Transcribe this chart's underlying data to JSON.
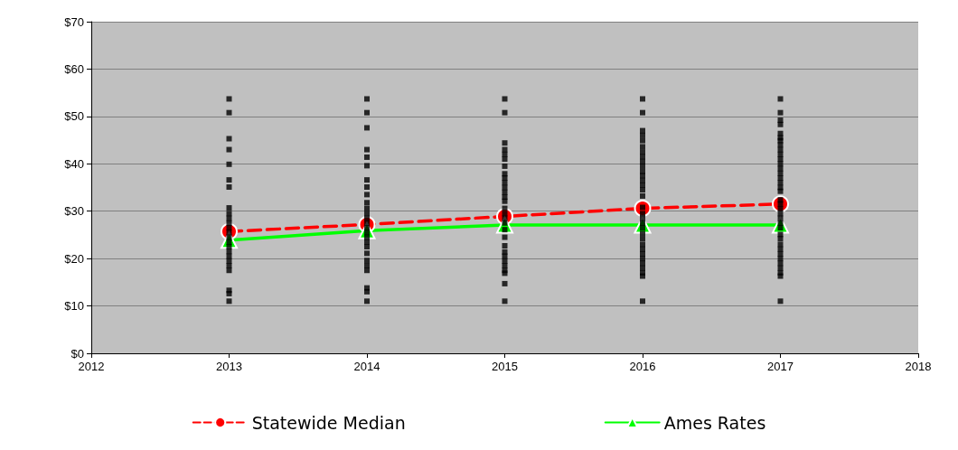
{
  "chart_data": {
    "type": "line",
    "xlim": [
      2012,
      2018
    ],
    "xticks": [
      2012,
      2013,
      2014,
      2015,
      2016,
      2017,
      2018
    ],
    "ylim": [
      0,
      70
    ],
    "yticks": [
      {
        "value": 0,
        "label": "$0"
      },
      {
        "value": 10,
        "label": "$10"
      },
      {
        "value": 20,
        "label": "$20"
      },
      {
        "value": 30,
        "label": "$30"
      },
      {
        "value": 40,
        "label": "$40"
      },
      {
        "value": 50,
        "label": "$50"
      },
      {
        "value": 60,
        "label": "$60"
      },
      {
        "value": 70,
        "label": "$70"
      }
    ],
    "grid": "y",
    "legend": "bottom",
    "series": [
      {
        "type": "scatter",
        "color": "#000000",
        "marker": "square",
        "x": [
          2013,
          2013,
          2013,
          2013,
          2013,
          2013,
          2013,
          2013,
          2013,
          2013,
          2013,
          2013,
          2013,
          2013,
          2013,
          2013,
          2013,
          2013,
          2013,
          2013,
          2013,
          2013,
          2013,
          2013,
          2014,
          2014,
          2014,
          2014,
          2014,
          2014,
          2014,
          2014,
          2014,
          2014,
          2014,
          2014,
          2014,
          2014,
          2014,
          2014,
          2014,
          2014,
          2014,
          2014,
          2014,
          2014,
          2014,
          2014,
          2014,
          2014,
          2015,
          2015,
          2015,
          2015,
          2015,
          2015,
          2015,
          2015,
          2015,
          2015,
          2015,
          2015,
          2015,
          2015,
          2015,
          2015,
          2015,
          2015,
          2015,
          2015,
          2015,
          2015,
          2015,
          2015,
          2015,
          2015,
          2015,
          2015,
          2015,
          2016,
          2016,
          2016,
          2016,
          2016,
          2016,
          2016,
          2016,
          2016,
          2016,
          2016,
          2016,
          2016,
          2016,
          2016,
          2016,
          2016,
          2016,
          2016,
          2016,
          2016,
          2016,
          2016,
          2016,
          2016,
          2016,
          2016,
          2016,
          2016,
          2016,
          2016,
          2016,
          2017,
          2017,
          2017,
          2017,
          2017,
          2017,
          2017,
          2017,
          2017,
          2017,
          2017,
          2017,
          2017,
          2017,
          2017,
          2017,
          2017,
          2017,
          2017,
          2017,
          2017,
          2017,
          2017,
          2017,
          2017,
          2017,
          2017,
          2017,
          2017,
          2017,
          2017,
          2017,
          2017,
          2017,
          2017,
          2017
        ],
        "values": [
          53.7,
          50.8,
          45.3,
          43.0,
          39.9,
          36.6,
          35.1,
          30.7,
          29.5,
          28.5,
          27.5,
          26.5,
          25.5,
          24.5,
          23.5,
          22.5,
          21.5,
          20.5,
          19.5,
          18.5,
          17.5,
          13.3,
          12.6,
          11.0,
          53.7,
          50.8,
          47.6,
          43.0,
          41.4,
          39.6,
          36.6,
          35.1,
          33.5,
          31.8,
          30.6,
          29.5,
          28.5,
          27.5,
          26.5,
          25.5,
          24.5,
          23.5,
          22.5,
          21.1,
          19.6,
          18.5,
          17.5,
          13.8,
          13.0,
          11.0,
          53.7,
          50.8,
          44.4,
          43.0,
          42.0,
          41.0,
          39.5,
          37.9,
          37.0,
          36.0,
          35.0,
          34.0,
          33.0,
          32.1,
          30.6,
          29.5,
          28.5,
          27.5,
          26.1,
          24.5,
          22.7,
          21.4,
          20.5,
          19.5,
          18.5,
          17.5,
          16.9,
          14.7,
          11.0,
          53.7,
          50.8,
          47.0,
          46.0,
          44.9,
          43.6,
          42.5,
          41.5,
          40.5,
          39.5,
          38.4,
          37.5,
          36.5,
          35.5,
          34.5,
          33.2,
          30.8,
          29.5,
          28.5,
          27.5,
          26.5,
          25.3,
          24.2,
          23.0,
          22.0,
          21.0,
          20.0,
          19.0,
          18.0,
          17.0,
          16.3,
          11.0,
          53.7,
          50.8,
          49.2,
          48.3,
          46.4,
          45.5,
          44.9,
          44.0,
          43.0,
          42.0,
          41.0,
          40.0,
          39.0,
          38.0,
          37.0,
          36.0,
          35.0,
          34.2,
          32.4,
          31.5,
          30.5,
          29.5,
          28.5,
          27.5,
          26.5,
          25.1,
          24.2,
          23.0,
          22.0,
          21.0,
          20.0,
          19.0,
          18.0,
          17.0,
          16.3,
          11.0
        ]
      },
      {
        "name": "Statewide Median",
        "color": "#ff0000",
        "marker": "circle",
        "line_style": "dashed",
        "x": [
          2013,
          2014,
          2015,
          2016,
          2017
        ],
        "values": [
          25.7,
          27.2,
          28.9,
          30.6,
          31.5
        ]
      },
      {
        "name": "Ames Rates",
        "color": "#00ff00",
        "marker": "triangle",
        "line_style": "solid",
        "x": [
          2013,
          2014,
          2015,
          2016,
          2017
        ],
        "values": [
          23.9,
          25.9,
          27.1,
          27.1,
          27.1
        ]
      }
    ]
  }
}
